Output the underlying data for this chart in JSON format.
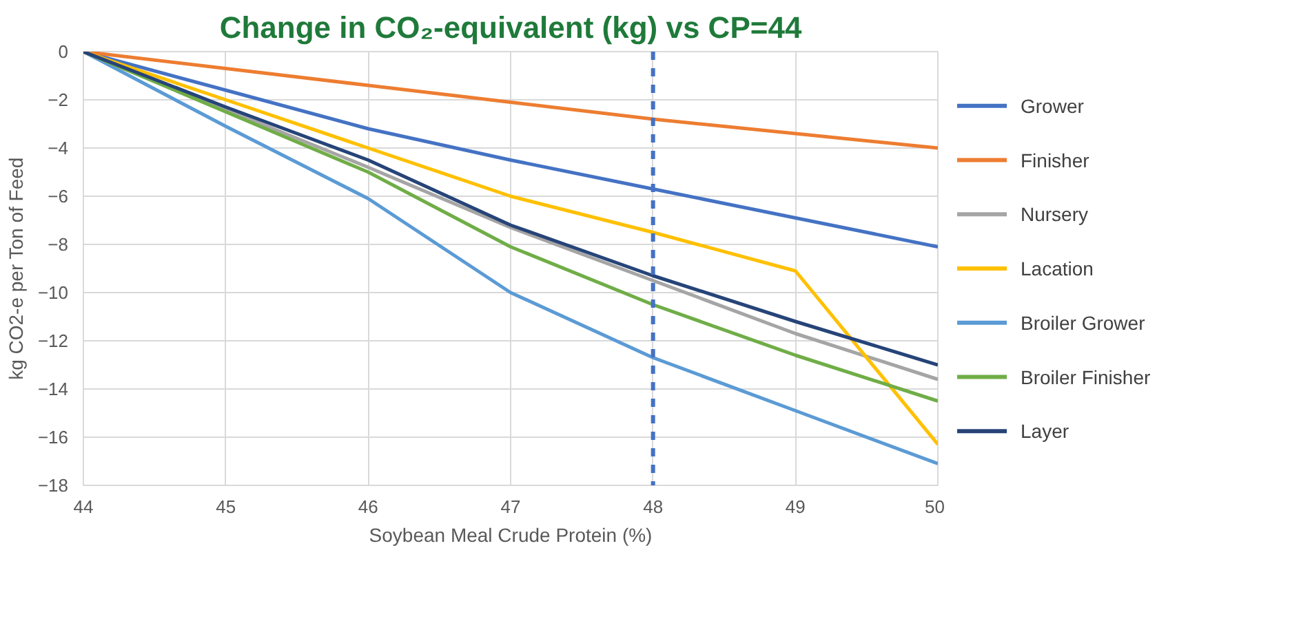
{
  "chart_data": {
    "type": "line",
    "title": "Change in CO₂-equivalent (kg) vs CP=44",
    "xlabel": "Soybean Meal Crude Protein (%)",
    "ylabel": "kg CO2-e per Ton of Feed",
    "x": [
      44,
      45,
      46,
      47,
      48,
      49,
      50
    ],
    "series": [
      {
        "name": "Grower",
        "color": "#4472c4",
        "values": [
          0,
          -1.6,
          -3.2,
          -4.5,
          -5.7,
          -6.9,
          -8.1
        ]
      },
      {
        "name": "Finisher",
        "color": "#ed7d31",
        "values": [
          0,
          -0.7,
          -1.4,
          -2.1,
          -2.8,
          -3.4,
          -4.0
        ]
      },
      {
        "name": "Nursery",
        "color": "#a5a5a5",
        "values": [
          0,
          -2.4,
          -4.8,
          -7.3,
          -9.5,
          -11.7,
          -13.6
        ]
      },
      {
        "name": "Lacation",
        "color": "#ffc000",
        "values": [
          0,
          -2.0,
          -4.0,
          -6.0,
          -7.5,
          -9.1,
          -16.3
        ]
      },
      {
        "name": "Broiler Grower",
        "color": "#5b9bd5",
        "values": [
          0,
          -3.1,
          -6.1,
          -10.0,
          -12.7,
          -14.9,
          -17.1
        ]
      },
      {
        "name": "Broiler Finisher",
        "color": "#70ad47",
        "values": [
          0,
          -2.5,
          -5.0,
          -8.1,
          -10.5,
          -12.6,
          -14.5
        ]
      },
      {
        "name": "Layer",
        "color": "#264478",
        "values": [
          0,
          -2.3,
          -4.5,
          -7.2,
          -9.3,
          -11.2,
          -13.0
        ]
      }
    ],
    "xlim": [
      44,
      50
    ],
    "xticks": [
      44,
      45,
      46,
      47,
      48,
      49,
      50
    ],
    "ylim": [
      -18,
      0
    ],
    "yticks": [
      -18,
      -16,
      -14,
      -12,
      -10,
      -8,
      -6,
      -4,
      -2,
      0
    ],
    "ref_lines": [
      {
        "axis": "x",
        "value": 48,
        "color": "#4472c4",
        "line_style": "dashed"
      }
    ],
    "grid": true,
    "legend": "right",
    "marker": "none",
    "line_style": "solid"
  }
}
